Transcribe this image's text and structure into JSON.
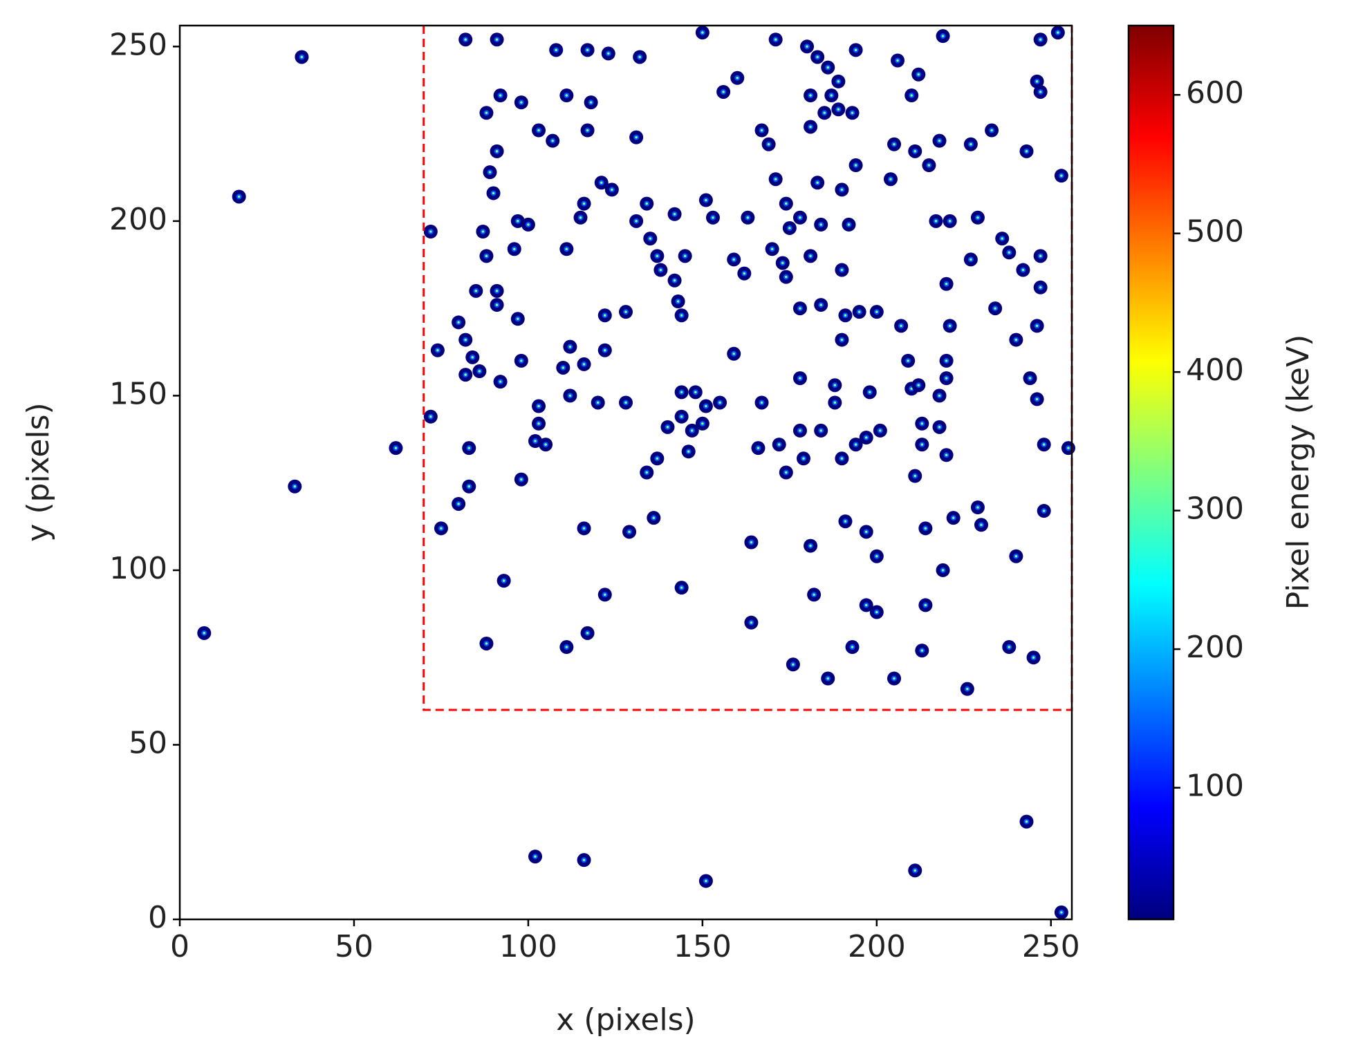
{
  "chart_data": {
    "type": "scatter",
    "xlabel": "x (pixels)",
    "ylabel": "y (pixels)",
    "x": [
      35,
      17,
      7,
      33,
      62,
      102,
      116,
      151,
      211,
      243,
      253,
      82,
      91,
      108,
      117,
      123,
      132,
      150,
      171,
      180,
      183,
      194,
      206,
      212,
      219,
      247,
      252,
      186,
      189,
      160,
      156,
      181,
      185,
      189,
      193,
      181,
      210,
      187,
      92,
      98,
      88,
      111,
      118,
      103,
      107,
      117,
      131,
      167,
      169,
      246,
      247,
      233,
      227,
      205,
      211,
      215,
      218,
      243,
      253,
      194,
      183,
      190,
      204,
      171,
      91,
      89,
      90,
      121,
      124,
      116,
      115,
      134,
      142,
      131,
      151,
      153,
      163,
      174,
      178,
      175,
      184,
      192,
      72,
      87,
      88,
      97,
      100,
      96,
      111,
      135,
      137,
      138,
      145,
      142,
      159,
      162,
      170,
      173,
      174,
      181,
      190,
      217,
      221,
      229,
      236,
      238,
      242,
      247,
      227,
      220,
      247,
      85,
      91,
      91,
      97,
      122,
      128,
      143,
      144,
      178,
      184,
      191,
      195,
      200,
      207,
      221,
      234,
      240,
      246,
      190,
      80,
      82,
      74,
      84,
      86,
      82,
      92,
      98,
      112,
      110,
      116,
      122,
      159,
      112,
      103,
      120,
      128,
      144,
      148,
      151,
      155,
      144,
      150,
      140,
      147,
      167,
      178,
      188,
      188,
      198,
      210,
      212,
      220,
      220,
      218,
      209,
      244,
      246,
      213,
      218,
      213,
      197,
      194,
      201,
      178,
      172,
      166,
      184,
      102,
      105,
      103,
      72,
      83,
      83,
      80,
      98,
      134,
      137,
      146,
      174,
      179,
      190,
      211,
      220,
      248,
      255,
      75,
      116,
      129,
      136,
      164,
      181,
      191,
      197,
      200,
      214,
      222,
      229,
      230,
      240,
      248,
      219,
      93,
      122,
      144,
      182,
      197,
      200,
      214,
      164,
      88,
      111,
      117,
      176,
      186,
      193,
      205,
      213,
      226,
      238,
      245
    ],
    "values": [
      247,
      207,
      82,
      124,
      135,
      18,
      17,
      11,
      14,
      28,
      2,
      252,
      252,
      249,
      249,
      248,
      247,
      254,
      252,
      250,
      247,
      249,
      246,
      242,
      253,
      252,
      254,
      244,
      240,
      241,
      237,
      236,
      231,
      232,
      231,
      227,
      236,
      236,
      236,
      234,
      231,
      236,
      234,
      226,
      223,
      226,
      224,
      226,
      222,
      240,
      237,
      226,
      222,
      222,
      220,
      216,
      223,
      220,
      213,
      216,
      211,
      209,
      212,
      212,
      220,
      214,
      208,
      211,
      209,
      205,
      201,
      205,
      202,
      200,
      206,
      201,
      201,
      205,
      201,
      198,
      199,
      199,
      197,
      197,
      190,
      200,
      199,
      192,
      192,
      195,
      190,
      186,
      190,
      183,
      189,
      185,
      192,
      188,
      184,
      190,
      186,
      200,
      200,
      201,
      195,
      191,
      186,
      190,
      189,
      182,
      181,
      180,
      180,
      176,
      172,
      173,
      174,
      177,
      173,
      175,
      176,
      173,
      174,
      174,
      170,
      170,
      175,
      166,
      170,
      166,
      171,
      166,
      163,
      161,
      157,
      156,
      154,
      160,
      164,
      158,
      159,
      163,
      162,
      150,
      147,
      148,
      148,
      151,
      151,
      147,
      148,
      144,
      142,
      141,
      140,
      148,
      155,
      153,
      148,
      151,
      152,
      153,
      155,
      160,
      150,
      160,
      155,
      149,
      142,
      141,
      136,
      138,
      136,
      140,
      140,
      136,
      135,
      140,
      137,
      136,
      142,
      144,
      135,
      124,
      119,
      126,
      128,
      132,
      134,
      128,
      132,
      132,
      127,
      133,
      136,
      135,
      112,
      112,
      111,
      115,
      108,
      107,
      114,
      111,
      104,
      112,
      115,
      118,
      113,
      104,
      117,
      100,
      97,
      93,
      95,
      93,
      90,
      88,
      90,
      85,
      79,
      78,
      82,
      73,
      69,
      78,
      69,
      77,
      66,
      78,
      75
    ],
    "color": "#00007f",
    "xlim": [
      0,
      256
    ],
    "ylim": [
      0,
      256
    ],
    "xticks": [
      0,
      50,
      100,
      150,
      200,
      250
    ],
    "yticks": [
      0,
      50,
      100,
      150,
      200,
      250
    ],
    "region": {
      "x": [
        70,
        256
      ],
      "y": [
        60,
        256
      ],
      "color": "#ff0000"
    },
    "colorbar": {
      "label": "Pixel energy (keV)",
      "colormap": "jet",
      "clim": [
        5,
        650
      ],
      "ticks": [
        100,
        200,
        300,
        400,
        500,
        600
      ]
    }
  }
}
